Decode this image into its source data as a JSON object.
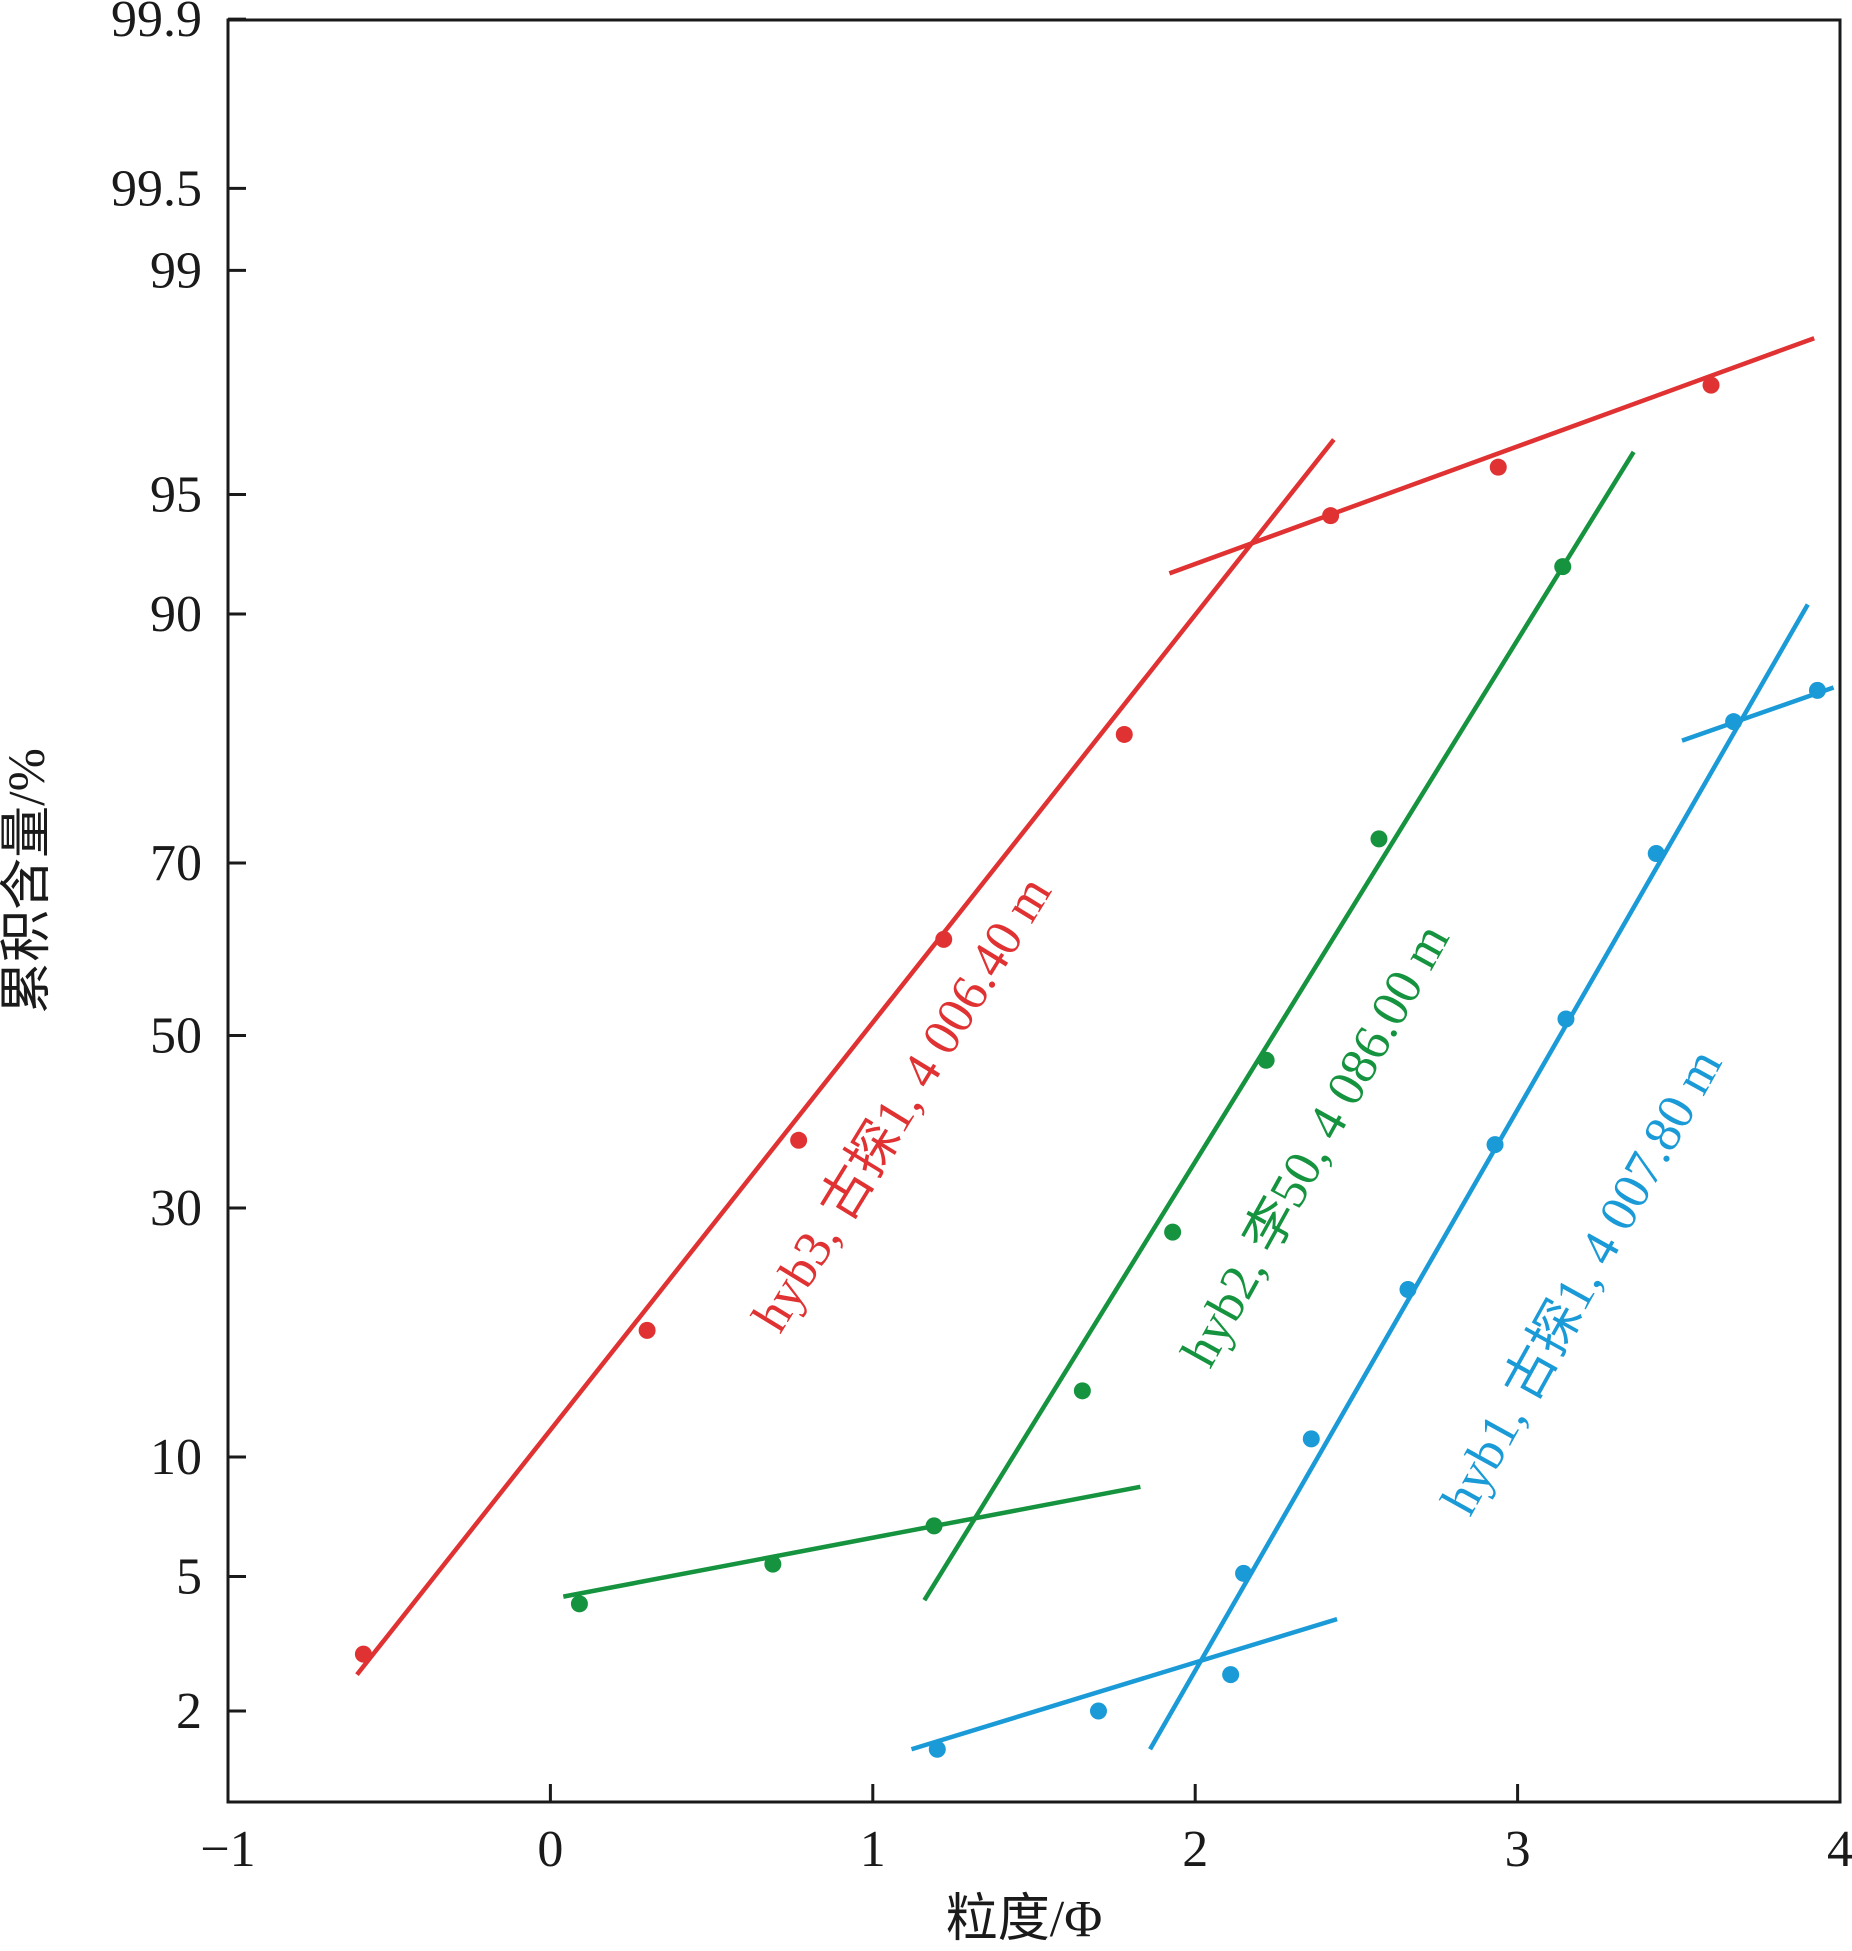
{
  "chart_data": {
    "type": "scatter",
    "title": "",
    "xlabel": "粒度/Φ",
    "ylabel": "累积含量/%",
    "x_ticks": [
      -1,
      0,
      1,
      2,
      3,
      4
    ],
    "x_tick_labels": [
      "−1",
      "0",
      "1",
      "2",
      "3",
      "4"
    ],
    "y_ticks": [
      2,
      5,
      10,
      30,
      50,
      70,
      90,
      95,
      99,
      99.5,
      99.9
    ],
    "y_tick_labels": [
      "2",
      "5",
      "10",
      "30",
      "50",
      "70",
      "90",
      "95",
      "99",
      "99.5",
      "99.9"
    ],
    "xlim": [
      -1,
      4
    ],
    "y_scale": "probability",
    "grid": false,
    "series": [
      {
        "name": "hyb3, 古探1, 4 006.40 m",
        "color": "#e03232",
        "points": [
          {
            "x": -0.58,
            "y": 3.0
          },
          {
            "x": 0.3,
            "y": 18.5
          },
          {
            "x": 0.77,
            "y": 37.5
          },
          {
            "x": 1.22,
            "y": 61.5
          },
          {
            "x": 1.78,
            "y": 82.0
          },
          {
            "x": 2.42,
            "y": 94.3
          },
          {
            "x": 2.94,
            "y": 95.8
          },
          {
            "x": 3.6,
            "y": 97.6
          }
        ],
        "fit_lines": [
          {
            "x": [
              -0.6,
              2.43
            ],
            "y": [
              2.6,
              96.5
            ]
          },
          {
            "x": 1.92,
            "x2": 3.92,
            "y": [
              92.0,
              98.3
            ]
          }
        ]
      },
      {
        "name": "hyb2, 李50, 4 086.00 m",
        "color": "#15933f",
        "points": [
          {
            "x": 0.09,
            "y": 4.2
          },
          {
            "x": 0.69,
            "y": 5.4
          },
          {
            "x": 1.19,
            "y": 6.8
          },
          {
            "x": 1.65,
            "y": 14.0
          },
          {
            "x": 1.93,
            "y": 27.5
          },
          {
            "x": 2.22,
            "y": 47.0
          },
          {
            "x": 2.57,
            "y": 72.5
          },
          {
            "x": 3.14,
            "y": 92.3
          }
        ],
        "fit_lines": [
          {
            "x": [
              0.04,
              1.83
            ],
            "y": [
              4.4,
              8.5
            ]
          },
          {
            "x": [
              1.16,
              3.36
            ],
            "y": [
              4.3,
              96.2
            ]
          }
        ]
      },
      {
        "name": "hyb1, 古探1, 4 007.80 m",
        "color": "#1a9ad6",
        "points": [
          {
            "x": 1.2,
            "y": 1.5
          },
          {
            "x": 1.7,
            "y": 2.0
          },
          {
            "x": 2.11,
            "y": 2.6
          },
          {
            "x": 2.15,
            "y": 5.1
          },
          {
            "x": 2.36,
            "y": 11.0
          },
          {
            "x": 2.66,
            "y": 22.0
          },
          {
            "x": 2.93,
            "y": 37.0
          },
          {
            "x": 3.15,
            "y": 52.0
          },
          {
            "x": 3.43,
            "y": 71.0
          },
          {
            "x": 3.67,
            "y": 83.0
          },
          {
            "x": 3.93,
            "y": 85.3
          }
        ],
        "fit_lines": [
          {
            "x": [
              1.12,
              2.44
            ],
            "y": [
              1.5,
              3.8
            ]
          },
          {
            "x": [
              1.86,
              3.9
            ],
            "y": [
              1.5,
              90.5
            ]
          },
          {
            "x": [
              3.51,
              3.98
            ],
            "y": [
              81.5,
              85.5
            ]
          }
        ]
      }
    ]
  }
}
